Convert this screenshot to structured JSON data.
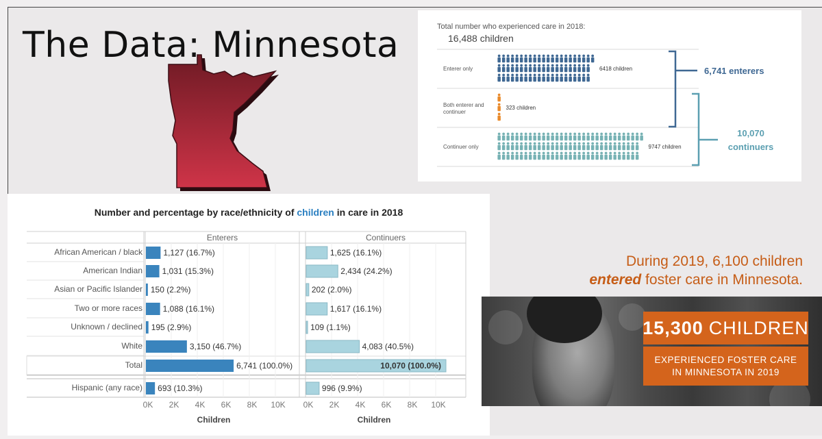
{
  "slide": {
    "title": "The Data: Minnesota",
    "caption_line1": "During 2019, 6,100 children",
    "caption_emph": "entered",
    "caption_rest": " foster care in Minnesota.",
    "banner_number": "15,300",
    "banner_word": "CHILDREN",
    "banner_line1": "EXPERIENCED FOSTER CARE",
    "banner_line2": "IN MINNESOTA IN 2019",
    "map_fill_top": "#6e1a24",
    "map_fill_bottom": "#cf3448"
  },
  "chart_data": [
    {
      "type": "bar",
      "title": "Total number who experienced care in 2018:",
      "total_label": "16,488 children",
      "categories": [
        "Enterer only",
        "Both enterer and continuer",
        "Continuer only"
      ],
      "values": [
        6418,
        323,
        9747
      ],
      "value_labels": [
        "6418 children",
        "323 children",
        "9747 children"
      ],
      "colors": [
        "#3f6893",
        "#e98a2b",
        "#77b2b4"
      ],
      "brackets": [
        {
          "label": "6,741 enterers",
          "color": "#3f6893"
        },
        {
          "label_line1": "10,070",
          "label_line2": "continuers",
          "color": "#5b9fb1"
        }
      ]
    },
    {
      "type": "bar",
      "title_prefix": "Number and percentage by race/ethnicity of ",
      "title_highlight": "children",
      "title_suffix": " in care in 2018",
      "categories": [
        "African American / black",
        "American Indian",
        "Asian or Pacific Islander",
        "Two or more races",
        "Unknown / declined",
        "White",
        "Total",
        "Hispanic (any race)"
      ],
      "series": [
        {
          "name": "Enterers",
          "color": "#3a84bd",
          "values": [
            1127,
            1031,
            150,
            1088,
            195,
            3150,
            6741,
            693
          ],
          "labels": [
            "1,127 (16.7%)",
            "1,031 (15.3%)",
            "150 (2.2%)",
            "1,088 (16.1%)",
            "195 (2.9%)",
            "3,150 (46.7%)",
            "6,741 (100.0%)",
            "693 (10.3%)"
          ]
        },
        {
          "name": "Continuers",
          "color": "#a9d4df",
          "values": [
            1625,
            2434,
            202,
            1617,
            109,
            4083,
            10070,
            996
          ],
          "labels": [
            "1,625 (16.1%)",
            "2,434 (24.2%)",
            "202 (2.0%)",
            "1,617 (16.1%)",
            "109 (1.1%)",
            "4,083 (40.5%)",
            "10,070 (100.0%)",
            "996 (9.9%)"
          ]
        }
      ],
      "xlim": [
        0,
        10000
      ],
      "xticks": [
        "0K",
        "2K",
        "4K",
        "6K",
        "8K",
        "10K"
      ],
      "xlabel": "Children"
    }
  ]
}
